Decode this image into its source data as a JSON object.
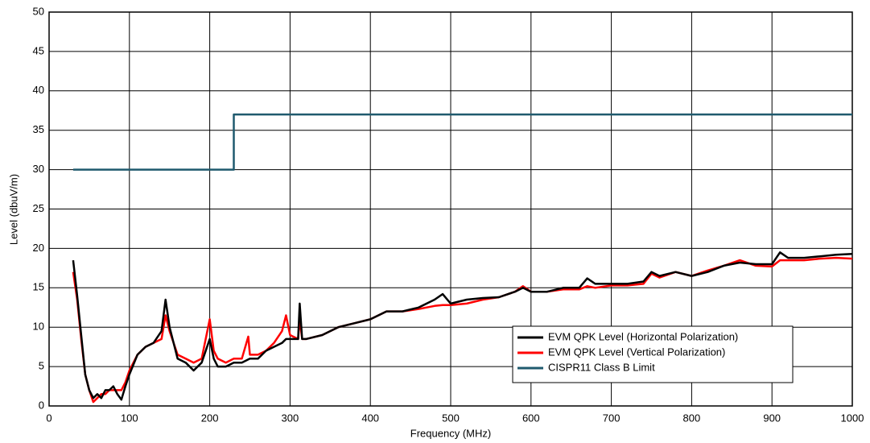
{
  "chart_data": {
    "type": "line",
    "xlabel": "Frequency (MHz)",
    "ylabel": "Level (dbuV/m)",
    "xlim": [
      0,
      1000
    ],
    "xticks": [
      0,
      100,
      200,
      300,
      400,
      500,
      600,
      700,
      800,
      900,
      1000
    ],
    "ylim": [
      0,
      50
    ],
    "yticks": [
      0,
      5,
      10,
      15,
      20,
      25,
      30,
      35,
      40,
      45,
      50
    ],
    "grid": true,
    "legend": "lower right",
    "series": [
      {
        "name": "EVM QPK Level (Horizontal Polarization)",
        "color": "#000000",
        "x": [
          30,
          35,
          40,
          45,
          50,
          55,
          60,
          65,
          70,
          75,
          80,
          85,
          90,
          95,
          100,
          110,
          120,
          130,
          140,
          145,
          150,
          160,
          170,
          180,
          190,
          200,
          205,
          210,
          220,
          230,
          240,
          250,
          260,
          270,
          280,
          290,
          295,
          300,
          310,
          312,
          315,
          320,
          340,
          360,
          380,
          400,
          420,
          440,
          460,
          480,
          490,
          500,
          520,
          540,
          560,
          580,
          590,
          600,
          620,
          640,
          660,
          670,
          680,
          700,
          720,
          740,
          750,
          760,
          780,
          800,
          820,
          840,
          860,
          880,
          900,
          910,
          920,
          940,
          960,
          980,
          1000
        ],
        "values": [
          18.5,
          14,
          9,
          4,
          2,
          1,
          1.5,
          1,
          2,
          2,
          2.5,
          1.5,
          0.8,
          2.5,
          4,
          6.5,
          7.5,
          8,
          9.5,
          13.5,
          10,
          6,
          5.5,
          4.5,
          5.5,
          8.5,
          6,
          5,
          5,
          5.5,
          5.5,
          6,
          6,
          7,
          7.5,
          8,
          8.5,
          8.5,
          8.5,
          13,
          8.5,
          8.5,
          9,
          10,
          10.5,
          11,
          12,
          12,
          12.5,
          13.5,
          14.2,
          13,
          13.5,
          13.7,
          13.8,
          14.5,
          15,
          14.5,
          14.5,
          15,
          15,
          16.2,
          15.5,
          15.5,
          15.5,
          15.8,
          17,
          16.5,
          17,
          16.5,
          17,
          17.8,
          18.2,
          18,
          18,
          19.5,
          18.8,
          18.8,
          19,
          19.2,
          19.3
        ]
      },
      {
        "name": "EVM QPK Level (Vertical Polarization)",
        "color": "#ff0000",
        "x": [
          30,
          35,
          40,
          45,
          50,
          55,
          60,
          65,
          70,
          75,
          80,
          85,
          90,
          95,
          100,
          110,
          120,
          130,
          140,
          145,
          150,
          160,
          170,
          180,
          190,
          200,
          205,
          210,
          220,
          230,
          240,
          248,
          250,
          260,
          270,
          280,
          290,
          295,
          300,
          310,
          312,
          315,
          320,
          340,
          360,
          380,
          400,
          420,
          440,
          460,
          480,
          490,
          500,
          520,
          540,
          560,
          580,
          590,
          600,
          620,
          640,
          660,
          670,
          680,
          700,
          720,
          740,
          750,
          760,
          780,
          800,
          820,
          840,
          860,
          880,
          900,
          910,
          920,
          940,
          960,
          980,
          1000
        ],
        "values": [
          17,
          13.5,
          8.5,
          4,
          2,
          0.5,
          1,
          1.5,
          1.5,
          2,
          2,
          2,
          2,
          3,
          4.5,
          6.5,
          7.5,
          8,
          8.5,
          11.5,
          9.5,
          6.5,
          6,
          5.5,
          6,
          11,
          7,
          6,
          5.5,
          6,
          6,
          8.8,
          6.5,
          6.5,
          7,
          8,
          9.5,
          11.5,
          9,
          8.5,
          11,
          8.5,
          8.5,
          9,
          10,
          10.5,
          11,
          12,
          12,
          12.3,
          12.7,
          12.8,
          12.8,
          13,
          13.5,
          13.8,
          14.5,
          15.2,
          14.5,
          14.5,
          14.8,
          14.8,
          15.2,
          15,
          15.3,
          15.3,
          15.5,
          16.8,
          16.3,
          17,
          16.5,
          17.2,
          17.8,
          18.5,
          17.8,
          17.7,
          18.5,
          18.5,
          18.5,
          18.7,
          18.8,
          18.7
        ]
      },
      {
        "name": "CISPR11 Class B Limit",
        "color": "#1f5a6e",
        "x": [
          30,
          230,
          230,
          1000
        ],
        "values": [
          30,
          30,
          37,
          37
        ]
      }
    ]
  }
}
